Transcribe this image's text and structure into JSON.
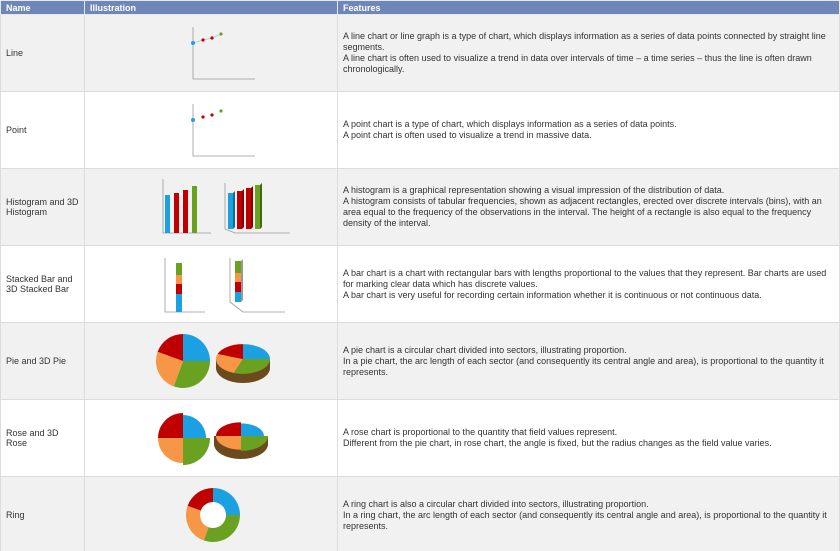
{
  "table": {
    "header": [
      "Name",
      "Illustration",
      "Features"
    ],
    "rows": [
      {
        "name": "Line",
        "features": [
          "A line chart or line graph is a type of chart, which displays information as a series of data points connected by straight line segments.",
          "A line chart is often used to visualize a trend in data over intervals of time – a time series – thus the line is often drawn chronologically."
        ]
      },
      {
        "name": "Point",
        "features": [
          "A point chart is a type of chart, which displays information as a series of data points.",
          "A point chart is often used to visualize a trend in massive data."
        ]
      },
      {
        "name": "Histogram and 3D Histogram",
        "features": [
          "A histogram is a graphical representation showing a visual impression of the distribution of data.",
          "A histogram consists of tabular frequencies, shown as adjacent rectangles, erected over discrete intervals (bins), with an area equal to the frequency of the observations in the interval. The height of a rectangle is also equal to the frequency density of the interval."
        ]
      },
      {
        "name": "Stacked Bar and 3D Stacked Bar",
        "features": [
          "A bar chart is a chart with rectangular bars with lengths proportional to the values that they represent. Bar charts are used for marking clear data which has discrete values.",
          "A bar chart is very useful for recording certain information whether it is continuous or not continuous data."
        ]
      },
      {
        "name": "Pie and 3D Pie",
        "features": [
          "A pie chart is a circular chart divided into sectors, illustrating proportion.",
          "In a pie chart, the arc length of each sector (and consequently its central angle and area), is proportional to the quantity it represents."
        ]
      },
      {
        "name": "Rose and 3D Rose",
        "features": [
          "A rose chart is proportional to the quantity that field values represent.",
          "Different from the pie chart, in rose chart, the angle is fixed, but the radius changes as the field value varies."
        ]
      },
      {
        "name": "Ring",
        "features": [
          "A ring chart is also a circular chart divided into sectors, illustrating proportion.",
          "In a ring chart, the arc length of each sector (and consequently its central angle and area), is proportional to the quantity it represents."
        ]
      }
    ]
  }
}
